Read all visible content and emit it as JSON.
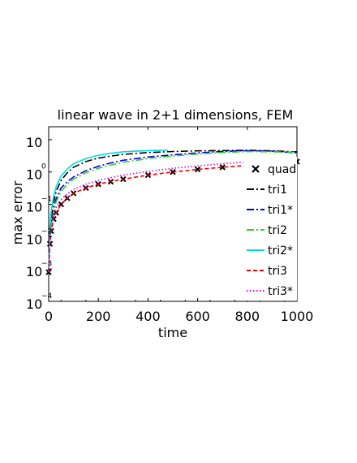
{
  "chart_data": {
    "type": "line",
    "title": "linear wave in 2+1 dimensions, FEM",
    "xlabel": "time",
    "ylabel": "max error",
    "xlim": [
      0,
      1000
    ],
    "ylim_log10": [
      -4,
      1.4
    ],
    "y_scale": "log",
    "grid": false,
    "legend_position": "right",
    "x_ticks": [
      {
        "value": 0,
        "label": "0"
      },
      {
        "value": 200,
        "label": "200"
      },
      {
        "value": 400,
        "label": "400"
      },
      {
        "value": 600,
        "label": "600"
      },
      {
        "value": 800,
        "label": "800"
      },
      {
        "value": 1000,
        "label": "1000"
      }
    ],
    "y_ticks": [
      {
        "exp": 1,
        "base": "10",
        "sup": ""
      },
      {
        "exp": 0,
        "base": "10",
        "sup": "0"
      },
      {
        "exp": -1,
        "base": "10",
        "sup": "−1"
      },
      {
        "exp": -2,
        "base": "10",
        "sup": "−2"
      },
      {
        "exp": -3,
        "base": "10",
        "sup": "−3"
      },
      {
        "exp": -4,
        "base": "10",
        "sup": "−4"
      }
    ],
    "series": [
      {
        "name": "quad",
        "color": "#cc0000",
        "style": "x-marker",
        "x": [
          0,
          5,
          10,
          20,
          30,
          50,
          75,
          100,
          150,
          200,
          250,
          300,
          400,
          500,
          600,
          700,
          800,
          900,
          1000
        ],
        "y": [
          0.0008,
          0.006,
          0.015,
          0.035,
          0.055,
          0.1,
          0.155,
          0.22,
          0.32,
          0.42,
          0.5,
          0.6,
          0.8,
          1.0,
          1.2,
          1.4,
          1.6,
          1.85,
          2.1
        ]
      },
      {
        "name": "tri1",
        "color": "#000000",
        "style": "dashdot",
        "x": [
          0,
          5,
          10,
          20,
          30,
          50,
          75,
          100,
          150,
          200,
          250,
          300,
          400,
          500,
          600,
          700,
          800,
          900,
          1000
        ],
        "y": [
          0.0008,
          0.015,
          0.04,
          0.12,
          0.25,
          0.55,
          0.95,
          1.4,
          2.1,
          2.7,
          3.1,
          3.5,
          4.0,
          4.3,
          4.5,
          4.6,
          4.7,
          4.5,
          4.2
        ]
      },
      {
        "name": "tri1*",
        "color": "#0000cc",
        "style": "dashdot",
        "x": [
          0,
          5,
          10,
          20,
          30,
          50,
          75,
          100,
          150,
          200,
          250,
          300,
          400,
          500,
          600,
          700,
          800,
          900,
          1000
        ],
        "y": [
          0.0008,
          0.01,
          0.025,
          0.07,
          0.15,
          0.32,
          0.5,
          0.7,
          1.1,
          1.5,
          1.9,
          2.3,
          2.9,
          3.4,
          3.9,
          4.3,
          4.6,
          4.4,
          3.9
        ]
      },
      {
        "name": "tri2",
        "color": "#33cc33",
        "style": "dashdot",
        "x": [
          0,
          5,
          10,
          20,
          30,
          50,
          75,
          100,
          150,
          200,
          250,
          300,
          400,
          500,
          600,
          700,
          800,
          900,
          1000
        ],
        "y": [
          0.0008,
          0.009,
          0.02,
          0.06,
          0.12,
          0.25,
          0.42,
          0.6,
          0.95,
          1.3,
          1.65,
          2.0,
          2.6,
          3.1,
          3.6,
          4.0,
          4.3,
          4.2,
          4.1
        ]
      },
      {
        "name": "tri2*",
        "color": "#00dddd",
        "style": "solid",
        "x": [
          0,
          5,
          10,
          20,
          30,
          50,
          75,
          100,
          150,
          200,
          250,
          300,
          350,
          400,
          450,
          480
        ],
        "y": [
          0.0008,
          0.02,
          0.06,
          0.18,
          0.35,
          0.75,
          1.25,
          1.8,
          2.6,
          3.3,
          3.8,
          4.2,
          4.4,
          4.6,
          4.7,
          4.75
        ]
      },
      {
        "name": "tri3",
        "color": "#ee0000",
        "style": "dashed",
        "x": [
          0,
          5,
          10,
          20,
          30,
          50,
          75,
          100,
          150,
          200,
          250,
          300,
          400,
          500,
          600,
          700,
          800,
          900,
          1000
        ],
        "y": [
          0.0008,
          0.006,
          0.015,
          0.036,
          0.056,
          0.1,
          0.156,
          0.22,
          0.32,
          0.42,
          0.51,
          0.6,
          0.8,
          1.0,
          1.2,
          1.4,
          1.6,
          1.85,
          2.1
        ]
      },
      {
        "name": "tri3*",
        "color": "#dd00dd",
        "style": "dotted",
        "x": [
          0,
          5,
          10,
          20,
          30,
          50,
          75,
          100,
          150,
          200,
          250,
          300,
          400,
          500,
          600,
          700,
          800,
          900,
          1000
        ],
        "y": [
          0.0008,
          0.008,
          0.02,
          0.05,
          0.08,
          0.14,
          0.21,
          0.29,
          0.42,
          0.55,
          0.67,
          0.8,
          1.05,
          1.3,
          1.55,
          1.8,
          2.05,
          2.3,
          2.5
        ]
      }
    ]
  }
}
